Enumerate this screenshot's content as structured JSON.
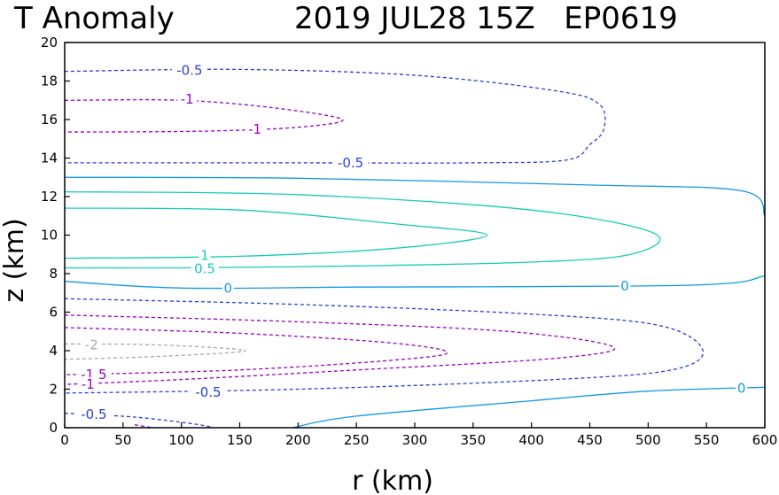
{
  "chart_data": {
    "type": "contour",
    "title_left": "T Anomaly",
    "title_right": "2019 JUL28 15Z   EP0619",
    "xlabel": "r (km)",
    "ylabel": "z (km)",
    "xlim": [
      0,
      600
    ],
    "ylim": [
      0,
      20
    ],
    "xticks": [
      "0",
      "50",
      "100",
      "150",
      "200",
      "250",
      "300",
      "350",
      "400",
      "450",
      "500",
      "550",
      "600"
    ],
    "yticks": [
      "0",
      "2",
      "4",
      "6",
      "8",
      "10",
      "12",
      "14",
      "16",
      "18",
      "20"
    ],
    "grid": false,
    "colors": {
      "-2": "#a9a9a9",
      "-1.5": "#9b00c9",
      "-1": "#9b00c9",
      "-0.5": "#2b3fd6",
      "0": "#1199e8",
      "0.5": "#13cdb6",
      "1": "#13cdb6"
    },
    "contours": [
      {
        "level": -0.5,
        "style": "dashed",
        "points": [
          [
            0,
            18.5
          ],
          [
            150,
            18.6
          ],
          [
            300,
            18.3
          ],
          [
            420,
            17.5
          ],
          [
            458,
            16.8
          ],
          [
            462,
            15.5
          ],
          [
            450,
            14.7
          ],
          [
            430,
            13.9
          ],
          [
            350,
            13.75
          ],
          [
            200,
            13.75
          ],
          [
            0,
            13.75
          ]
        ]
      },
      {
        "level": -1,
        "style": "dashed",
        "points": [
          [
            0,
            17.0
          ],
          [
            100,
            17.0
          ],
          [
            180,
            16.6
          ],
          [
            238,
            16.0
          ],
          [
            200,
            15.6
          ],
          [
            120,
            15.4
          ],
          [
            0,
            15.35
          ]
        ]
      },
      {
        "level": 0,
        "style": "solid",
        "points": [
          [
            0,
            13.0
          ],
          [
            200,
            12.95
          ],
          [
            450,
            12.6
          ],
          [
            580,
            12.3
          ],
          [
            600,
            11.0
          ]
        ]
      },
      {
        "level": 0.5,
        "style": "solid",
        "points": [
          [
            0,
            12.25
          ],
          [
            200,
            12.1
          ],
          [
            400,
            11.3
          ],
          [
            505,
            10.1
          ],
          [
            485,
            9.0
          ],
          [
            400,
            8.6
          ],
          [
            250,
            8.4
          ],
          [
            100,
            8.3
          ],
          [
            0,
            8.3
          ]
        ]
      },
      {
        "level": 1,
        "style": "solid",
        "points": [
          [
            0,
            11.4
          ],
          [
            150,
            11.3
          ],
          [
            280,
            10.6
          ],
          [
            362,
            10.0
          ],
          [
            280,
            9.3
          ],
          [
            150,
            8.9
          ],
          [
            0,
            8.8
          ]
        ]
      },
      {
        "level": 0,
        "style": "solid",
        "points": [
          [
            0,
            7.6
          ],
          [
            100,
            7.25
          ],
          [
            250,
            7.3
          ],
          [
            480,
            7.35
          ],
          [
            570,
            7.5
          ],
          [
            600,
            7.9
          ]
        ]
      },
      {
        "level": -0.5,
        "style": "dashed",
        "points": [
          [
            0,
            6.7
          ],
          [
            200,
            6.4
          ],
          [
            400,
            5.9
          ],
          [
            510,
            5.3
          ],
          [
            547,
            4.0
          ],
          [
            520,
            3.0
          ],
          [
            420,
            2.5
          ],
          [
            200,
            2.0
          ],
          [
            0,
            1.8
          ]
        ]
      },
      {
        "level": -1,
        "style": "dashed",
        "points": [
          [
            0,
            5.85
          ],
          [
            200,
            5.5
          ],
          [
            380,
            5.0
          ],
          [
            470,
            4.2
          ],
          [
            420,
            3.6
          ],
          [
            250,
            3.0
          ],
          [
            100,
            2.5
          ],
          [
            0,
            2.25
          ]
        ]
      },
      {
        "level": -1.5,
        "style": "dashed",
        "points": [
          [
            0,
            5.2
          ],
          [
            150,
            4.9
          ],
          [
            280,
            4.4
          ],
          [
            328,
            3.9
          ],
          [
            280,
            3.5
          ],
          [
            150,
            3.0
          ],
          [
            0,
            2.75
          ]
        ]
      },
      {
        "level": -2,
        "style": "dashed",
        "points": [
          [
            0,
            4.35
          ],
          [
            80,
            4.3
          ],
          [
            155,
            4.0
          ],
          [
            80,
            3.7
          ],
          [
            0,
            3.55
          ]
        ]
      },
      {
        "level": 0,
        "style": "solid",
        "points": [
          [
            195,
            0.0
          ],
          [
            250,
            0.6
          ],
          [
            400,
            1.4
          ],
          [
            500,
            1.9
          ],
          [
            600,
            2.1
          ]
        ]
      },
      {
        "level": -0.5,
        "style": "dashed",
        "points": [
          [
            0,
            0.75
          ],
          [
            60,
            0.55
          ],
          [
            110,
            0.2
          ],
          [
            128,
            0.0
          ]
        ]
      },
      {
        "level": -1,
        "style": "dashed",
        "points": [
          [
            60,
            0.15
          ],
          [
            75,
            0.0
          ]
        ]
      }
    ],
    "labels": [
      {
        "text": "-0.5",
        "x": 107,
        "y": 18.55,
        "level": -0.5
      },
      {
        "text": "-1",
        "x": 105,
        "y": 17.05,
        "level": -1
      },
      {
        "text": "-1",
        "x": 163,
        "y": 15.5,
        "level": -1
      },
      {
        "text": "-0.5",
        "x": 245,
        "y": 13.75,
        "level": -0.5
      },
      {
        "text": "1",
        "x": 120,
        "y": 8.95,
        "level": 1
      },
      {
        "text": "0.5",
        "x": 120,
        "y": 8.25,
        "level": 0.5
      },
      {
        "text": "0",
        "x": 140,
        "y": 7.25,
        "level": 0
      },
      {
        "text": "0",
        "x": 480,
        "y": 7.35,
        "level": 0
      },
      {
        "text": "-2",
        "x": 23,
        "y": 4.3,
        "level": -2
      },
      {
        "text": "-1.5",
        "x": 25,
        "y": 2.75,
        "level": -1.5
      },
      {
        "text": "-1",
        "x": 20,
        "y": 2.25,
        "level": -1
      },
      {
        "text": "-0.5",
        "x": 123,
        "y": 1.85,
        "level": -0.5
      },
      {
        "text": "0",
        "x": 580,
        "y": 2.05,
        "level": 0
      },
      {
        "text": "-0.5",
        "x": 25,
        "y": 0.7,
        "level": -0.5
      }
    ]
  }
}
